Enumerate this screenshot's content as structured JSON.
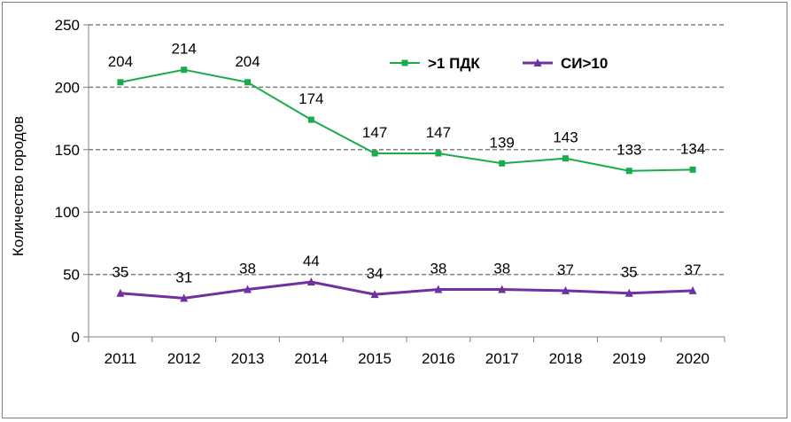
{
  "chart_data": {
    "type": "line",
    "ylabel": "Количество городов",
    "ylim": [
      0,
      250
    ],
    "yticks": [
      "0",
      "50",
      "100",
      "150",
      "200",
      "250"
    ],
    "categories": [
      "2011",
      "2012",
      "2013",
      "2014",
      "2015",
      "2016",
      "2017",
      "2018",
      "2019",
      "2020"
    ],
    "grid": "horizontal dashed",
    "legend_position": "top-right",
    "series": [
      {
        "name": ">1 ПДК",
        "values": [
          204,
          214,
          204,
          174,
          147,
          147,
          139,
          143,
          133,
          134
        ],
        "color": "#1aab4b",
        "marker": "square"
      },
      {
        "name": "СИ>10",
        "values": [
          35,
          31,
          38,
          44,
          34,
          38,
          38,
          37,
          35,
          37
        ],
        "color": "#7030a0",
        "marker": "triangle"
      }
    ]
  }
}
